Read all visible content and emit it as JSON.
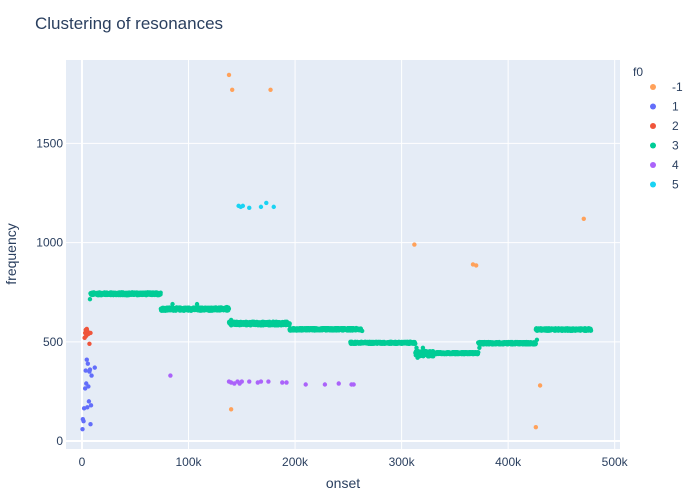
{
  "chart_data": {
    "type": "scatter",
    "title": "Clustering of resonances",
    "xlabel": "onset",
    "ylabel": "frequency",
    "xlim": [
      -15000,
      505000
    ],
    "ylim": [
      -40,
      1920
    ],
    "xticks": [
      0,
      100000,
      200000,
      300000,
      400000,
      500000
    ],
    "xtick_labels": [
      "0",
      "100k",
      "200k",
      "300k",
      "400k",
      "500k"
    ],
    "yticks": [
      0,
      500,
      1000,
      1500
    ],
    "ytick_labels": [
      "0",
      "500",
      "1000",
      "1500"
    ],
    "grid": true,
    "legend": {
      "title": "f0",
      "placement": "right"
    },
    "series": [
      {
        "name": "-1",
        "color": "#FFA15A",
        "points": [
          [
            138000,
            1845
          ],
          [
            141000,
            1770
          ],
          [
            177000,
            1770
          ],
          [
            312000,
            990
          ],
          [
            367000,
            890
          ],
          [
            370000,
            885
          ],
          [
            471000,
            1120
          ],
          [
            140000,
            160
          ],
          [
            430000,
            280
          ],
          [
            426000,
            70
          ]
        ]
      },
      {
        "name": "1",
        "color": "#636EFA",
        "points": [
          [
            500,
            60
          ],
          [
            800,
            110
          ],
          [
            1500,
            100
          ],
          [
            2000,
            165
          ],
          [
            3000,
            265
          ],
          [
            3500,
            355
          ],
          [
            4000,
            290
          ],
          [
            4500,
            410
          ],
          [
            5000,
            170
          ],
          [
            5500,
            390
          ],
          [
            6000,
            275
          ],
          [
            6500,
            200
          ],
          [
            7000,
            350
          ],
          [
            7500,
            360
          ],
          [
            8000,
            85
          ],
          [
            8500,
            180
          ],
          [
            9000,
            330
          ],
          [
            12000,
            370
          ]
        ]
      },
      {
        "name": "2",
        "color": "#EF553B",
        "points": [
          [
            2500,
            520
          ],
          [
            3000,
            545
          ],
          [
            3500,
            560
          ],
          [
            4000,
            530
          ],
          [
            4500,
            565
          ],
          [
            5000,
            555
          ],
          [
            6000,
            540
          ],
          [
            7000,
            490
          ],
          [
            8000,
            545
          ]
        ]
      },
      {
        "name": "3",
        "color": "#00CC96",
        "segments": [
          {
            "x": [
              8000,
              74000
            ],
            "y": 742,
            "spread": 7
          },
          {
            "x": [
              74000,
              138000
            ],
            "y": 665,
            "spread": 8
          },
          {
            "x": [
              138000,
              195000
            ],
            "y": 592,
            "spread": 9
          },
          {
            "x": [
              195000,
              262000
            ],
            "y": 563,
            "spread": 6
          },
          {
            "x": [
              252000,
              313000
            ],
            "y": 495,
            "spread": 5
          },
          {
            "x": [
              313000,
              330000
            ],
            "y": 440,
            "spread": 14
          },
          {
            "x": [
              330000,
              372000
            ],
            "y": 443,
            "spread": 5
          },
          {
            "x": [
              372000,
              426000
            ],
            "y": 493,
            "spread": 6
          },
          {
            "x": [
              426000,
              478000
            ],
            "y": 562,
            "spread": 6
          }
        ],
        "extra_points": [
          [
            7500,
            715
          ],
          [
            85000,
            690
          ],
          [
            108000,
            690
          ],
          [
            136000,
            675
          ],
          [
            140000,
            610
          ],
          [
            263000,
            555
          ],
          [
            314000,
            470
          ],
          [
            315000,
            420
          ],
          [
            320000,
            470
          ],
          [
            373000,
            470
          ],
          [
            427000,
            510
          ]
        ]
      },
      {
        "name": "4",
        "color": "#AB63FA",
        "points": [
          [
            83000,
            330
          ],
          [
            138000,
            300
          ],
          [
            140000,
            295
          ],
          [
            143000,
            290
          ],
          [
            146000,
            300
          ],
          [
            148000,
            290
          ],
          [
            150000,
            300
          ],
          [
            157000,
            300
          ],
          [
            165000,
            295
          ],
          [
            168000,
            300
          ],
          [
            175000,
            300
          ],
          [
            188000,
            295
          ],
          [
            192000,
            295
          ],
          [
            210000,
            285
          ],
          [
            228000,
            285
          ],
          [
            241000,
            290
          ],
          [
            253000,
            285
          ],
          [
            255000,
            285
          ]
        ]
      },
      {
        "name": "5",
        "color": "#19D3F3",
        "points": [
          [
            147000,
            1185
          ],
          [
            149000,
            1180
          ],
          [
            151000,
            1185
          ],
          [
            157000,
            1175
          ],
          [
            168000,
            1180
          ],
          [
            173000,
            1200
          ],
          [
            180000,
            1180
          ]
        ]
      }
    ]
  }
}
